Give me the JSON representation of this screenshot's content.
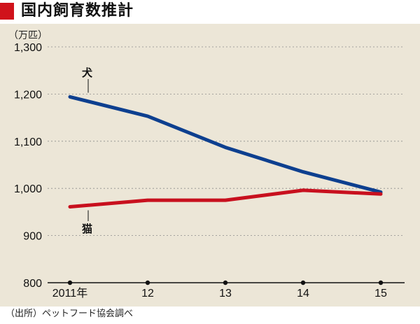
{
  "title": "国内飼育数推計",
  "source_note": "（出所）ペットフード協会調べ",
  "colors": {
    "title_mark": "#d0121b",
    "plot_bg": "#ece6d7",
    "dog": "#0d3f8f",
    "cat": "#c8101e",
    "grid": "#8c8c8c"
  },
  "chart_data": {
    "type": "line",
    "title": "国内飼育数推計",
    "ylabel": "（万匹）",
    "xlabel": "",
    "x": [
      "2011年",
      "12",
      "13",
      "14",
      "15"
    ],
    "ylim": [
      800,
      1300
    ],
    "yticks": [
      800,
      900,
      1000,
      1100,
      1200,
      1300
    ],
    "ytick_labels": [
      "800",
      "900",
      "1,000",
      "1,100",
      "1,200",
      "1,300"
    ],
    "grid": "horizontal-dashed",
    "series": [
      {
        "name": "犬",
        "values": [
          1194,
          1153,
          1087,
          1035,
          992
        ]
      },
      {
        "name": "猫",
        "values": [
          961,
          975,
          975,
          996,
          988
        ]
      }
    ]
  }
}
